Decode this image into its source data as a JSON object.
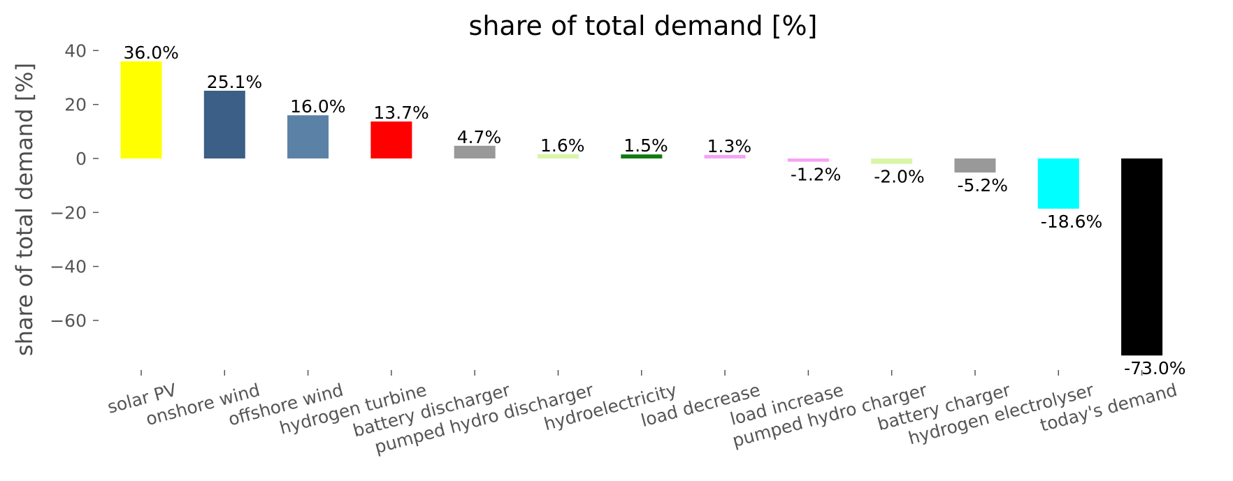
{
  "chart_data": {
    "type": "bar",
    "title": "share of total demand [%]",
    "ylabel": "share of total demand [%]",
    "xlabel": "",
    "ylim": [
      -80,
      42
    ],
    "yticks": [
      40,
      20,
      0,
      -20,
      -40,
      -60
    ],
    "ytick_labels": [
      "40",
      "20",
      "0",
      "−20",
      "−40",
      "−60"
    ],
    "grid": false,
    "categories": [
      "solar PV",
      "onshore wind",
      "offshore wind",
      "hydrogen turbine",
      "battery discharger",
      "pumped hydro discharger",
      "hydroelectricity",
      "load decrease",
      "load increase",
      "pumped hydro charger",
      "battery charger",
      "hydrogen electrolyser",
      "today's demand"
    ],
    "values": [
      36.0,
      25.1,
      16.0,
      13.7,
      4.7,
      1.6,
      1.5,
      1.3,
      -1.2,
      -2.0,
      -5.2,
      -18.6,
      -73.0
    ],
    "value_labels": [
      "36.0%",
      "25.1%",
      "16.0%",
      "13.7%",
      "4.7%",
      "1.6%",
      "1.5%",
      "1.3%",
      "-1.2%",
      "-2.0%",
      "-5.2%",
      "-18.6%",
      "-73.0%"
    ],
    "colors": [
      "#ffff00",
      "#3b5f86",
      "#5b82a6",
      "#ff0000",
      "#999999",
      "#d9f5a8",
      "#117a11",
      "#f5a3f5",
      "#f5a3f5",
      "#d9f5a8",
      "#999999",
      "#00ffff",
      "#000000"
    ]
  }
}
